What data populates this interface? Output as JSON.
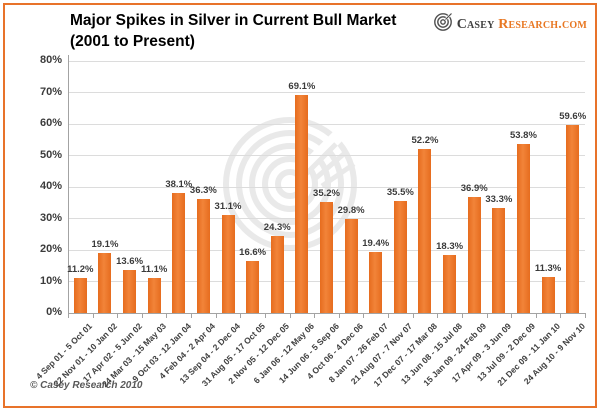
{
  "frame": {
    "border_color": "#E8732A",
    "background": "#FFFFFF"
  },
  "header": {
    "title_line1": "Major Spikes in Silver in Current Bull Market",
    "title_line2": "(2001 to Present)"
  },
  "logo": {
    "icon": "spiral-icon",
    "name_part1": "Casey",
    "name_part2": "Research.com"
  },
  "footer": {
    "copyright": "© Casey Research 2010"
  },
  "chart_data": {
    "type": "bar",
    "title": "Major Spikes in Silver in Current Bull Market (2001 to Present)",
    "categories": [
      "4 Sep 01 - 5 Oct 01",
      "22 Nov 01 - 10 Jan 02",
      "17 Apr 02 - 5 Jun 02",
      "24 Mar 03 - 15 May 03",
      "9 Oct 03 - 12 Jan 04",
      "4 Feb 04 - 2 Apr 04",
      "13 Sep 04 - 2 Dec 04",
      "31 Aug 05 - 17 Oct 05",
      "2 Nov 05 - 12 Dec 05",
      "6 Jan 06 - 12 May 06",
      "14 Jun 06 - 5 Sep 06",
      "4 Oct 06 - 4 Dec 06",
      "8 Jan 07 - 26 Feb 07",
      "21 Aug 07 - 7 Nov 07",
      "17 Dec 07 - 17 Mar 08",
      "13 Jun 08 - 15 Jul 08",
      "15 Jan 09 - 24 Feb 09",
      "17 Apr 09 - 3 Jun 09",
      "13 Jul 09 - 2 Dec 09",
      "21 Dec 09 - 11 Jan 10",
      "24 Aug 10 - 9 Nov 10"
    ],
    "values": [
      11.2,
      19.1,
      13.6,
      11.1,
      38.1,
      36.3,
      31.1,
      16.6,
      24.3,
      69.1,
      35.2,
      29.8,
      19.4,
      35.5,
      52.2,
      18.3,
      36.9,
      33.3,
      53.8,
      11.3,
      59.6
    ],
    "value_labels": [
      "11.2%",
      "19.1%",
      "13.6%",
      "11.1%",
      "38.1%",
      "36.3%",
      "31.1%",
      "16.6%",
      "24.3%",
      "69.1%",
      "35.2%",
      "29.8%",
      "19.4%",
      "35.5%",
      "52.2%",
      "18.3%",
      "36.9%",
      "33.3%",
      "53.8%",
      "11.3%",
      "59.6%"
    ],
    "xlabel": "",
    "ylabel": "",
    "ylim": [
      0,
      80
    ],
    "ytick_interval": 10,
    "ytick_labels": [
      "0%",
      "10%",
      "20%",
      "30%",
      "40%",
      "50%",
      "60%",
      "70%",
      "80%"
    ],
    "bar_color": "#ED7428",
    "gridline_color": "#DCDCDC",
    "grid": true,
    "legend": "none"
  }
}
